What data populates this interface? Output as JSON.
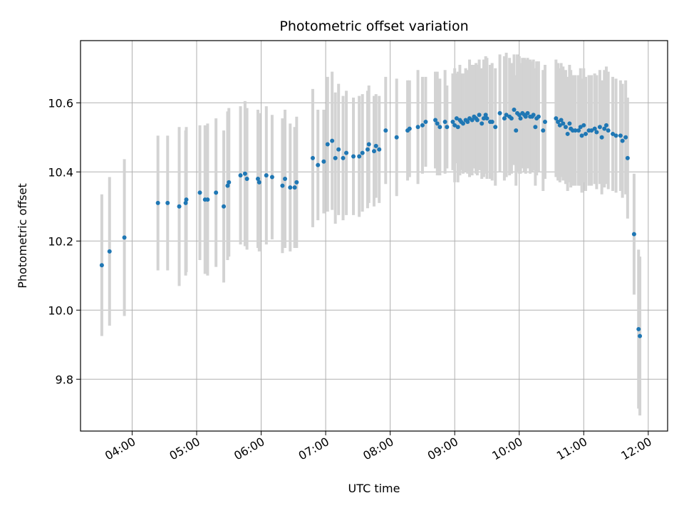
{
  "chart_data": {
    "type": "scatter",
    "title": "Photometric offset variation",
    "xlabel": "UTC time",
    "ylabel": "Photometric offset",
    "x_unit": "hours UTC",
    "xlim": [
      3.2,
      12.3
    ],
    "ylim": [
      9.65,
      10.78
    ],
    "x_ticks": [
      4,
      5,
      6,
      7,
      8,
      9,
      10,
      11,
      12
    ],
    "x_tick_labels": [
      "04:00",
      "05:00",
      "06:00",
      "07:00",
      "08:00",
      "09:00",
      "10:00",
      "11:00",
      "12:00"
    ],
    "y_ticks": [
      9.8,
      10.0,
      10.2,
      10.4,
      10.6
    ],
    "y_tick_labels": [
      "9.8",
      "10.0",
      "10.2",
      "10.4",
      "10.6"
    ],
    "grid": true,
    "point_color": "#1f77b4",
    "errorbar_color": "#d3d3d3",
    "points": [
      [
        3.53,
        10.13,
        0.205
      ],
      [
        3.65,
        10.17,
        0.215
      ],
      [
        3.88,
        10.21,
        0.227
      ],
      [
        4.4,
        10.31,
        0.195
      ],
      [
        4.55,
        10.31,
        0.195
      ],
      [
        4.73,
        10.3,
        0.23
      ],
      [
        4.83,
        10.31,
        0.21
      ],
      [
        4.84,
        10.32,
        0.21
      ],
      [
        5.05,
        10.34,
        0.195
      ],
      [
        5.13,
        10.32,
        0.215
      ],
      [
        5.17,
        10.32,
        0.22
      ],
      [
        5.3,
        10.34,
        0.215
      ],
      [
        5.42,
        10.3,
        0.22
      ],
      [
        5.48,
        10.36,
        0.215
      ],
      [
        5.5,
        10.37,
        0.215
      ],
      [
        5.68,
        10.39,
        0.2
      ],
      [
        5.75,
        10.395,
        0.21
      ],
      [
        5.78,
        10.38,
        0.205
      ],
      [
        5.95,
        10.38,
        0.2
      ],
      [
        5.97,
        10.37,
        0.2
      ],
      [
        6.08,
        10.39,
        0.2
      ],
      [
        6.17,
        10.385,
        0.18
      ],
      [
        6.33,
        10.36,
        0.195
      ],
      [
        6.37,
        10.38,
        0.2
      ],
      [
        6.45,
        10.355,
        0.185
      ],
      [
        6.52,
        10.355,
        0.175
      ],
      [
        6.55,
        10.37,
        0.19
      ],
      [
        6.8,
        10.44,
        0.2
      ],
      [
        6.88,
        10.42,
        0.16
      ],
      [
        6.97,
        10.43,
        0.15
      ],
      [
        7.03,
        10.48,
        0.195
      ],
      [
        7.1,
        10.49,
        0.2
      ],
      [
        7.15,
        10.44,
        0.19
      ],
      [
        7.2,
        10.465,
        0.19
      ],
      [
        7.27,
        10.44,
        0.18
      ],
      [
        7.32,
        10.455,
        0.18
      ],
      [
        7.43,
        10.445,
        0.17
      ],
      [
        7.52,
        10.445,
        0.175
      ],
      [
        7.57,
        10.455,
        0.17
      ],
      [
        7.65,
        10.465,
        0.17
      ],
      [
        7.67,
        10.48,
        0.17
      ],
      [
        7.75,
        10.46,
        0.16
      ],
      [
        7.78,
        10.475,
        0.15
      ],
      [
        7.83,
        10.465,
        0.155
      ],
      [
        7.93,
        10.52,
        0.155
      ],
      [
        8.1,
        10.5,
        0.17
      ],
      [
        8.27,
        10.52,
        0.145
      ],
      [
        8.3,
        10.525,
        0.14
      ],
      [
        8.43,
        10.53,
        0.165
      ],
      [
        8.5,
        10.535,
        0.14
      ],
      [
        8.55,
        10.545,
        0.13
      ],
      [
        8.7,
        10.55,
        0.14
      ],
      [
        8.73,
        10.54,
        0.15
      ],
      [
        8.77,
        10.53,
        0.14
      ],
      [
        8.85,
        10.545,
        0.15
      ],
      [
        8.88,
        10.53,
        0.12
      ],
      [
        8.97,
        10.545,
        0.14
      ],
      [
        9.0,
        10.535,
        0.165
      ],
      [
        9.03,
        10.555,
        0.13
      ],
      [
        9.05,
        10.53,
        0.16
      ],
      [
        9.08,
        10.55,
        0.16
      ],
      [
        9.1,
        10.545,
        0.14
      ],
      [
        9.13,
        10.54,
        0.145
      ],
      [
        9.17,
        10.55,
        0.15
      ],
      [
        9.2,
        10.545,
        0.15
      ],
      [
        9.23,
        10.555,
        0.17
      ],
      [
        9.27,
        10.55,
        0.16
      ],
      [
        9.3,
        10.56,
        0.15
      ],
      [
        9.33,
        10.555,
        0.16
      ],
      [
        9.35,
        10.55,
        0.16
      ],
      [
        9.38,
        10.565,
        0.16
      ],
      [
        9.42,
        10.54,
        0.16
      ],
      [
        9.45,
        10.555,
        0.17
      ],
      [
        9.48,
        10.565,
        0.17
      ],
      [
        9.5,
        10.555,
        0.175
      ],
      [
        9.55,
        10.545,
        0.165
      ],
      [
        9.58,
        10.545,
        0.17
      ],
      [
        9.63,
        10.53,
        0.17
      ],
      [
        9.7,
        10.57,
        0.17
      ],
      [
        9.77,
        10.555,
        0.18
      ],
      [
        9.8,
        10.565,
        0.18
      ],
      [
        9.85,
        10.56,
        0.17
      ],
      [
        9.88,
        10.555,
        0.16
      ],
      [
        9.92,
        10.58,
        0.16
      ],
      [
        9.95,
        10.52,
        0.16
      ],
      [
        9.97,
        10.57,
        0.17
      ],
      [
        10.0,
        10.565,
        0.17
      ],
      [
        10.02,
        10.555,
        0.16
      ],
      [
        10.05,
        10.57,
        0.16
      ],
      [
        10.08,
        10.565,
        0.165
      ],
      [
        10.1,
        10.56,
        0.165
      ],
      [
        10.13,
        10.57,
        0.16
      ],
      [
        10.17,
        10.56,
        0.165
      ],
      [
        10.2,
        10.56,
        0.16
      ],
      [
        10.22,
        10.565,
        0.16
      ],
      [
        10.25,
        10.53,
        0.17
      ],
      [
        10.27,
        10.555,
        0.165
      ],
      [
        10.3,
        10.56,
        0.16
      ],
      [
        10.37,
        10.52,
        0.175
      ],
      [
        10.4,
        10.545,
        0.165
      ],
      [
        10.57,
        10.555,
        0.17
      ],
      [
        10.6,
        10.545,
        0.17
      ],
      [
        10.63,
        10.535,
        0.165
      ],
      [
        10.65,
        10.55,
        0.165
      ],
      [
        10.68,
        10.54,
        0.165
      ],
      [
        10.72,
        10.53,
        0.165
      ],
      [
        10.75,
        10.51,
        0.165
      ],
      [
        10.78,
        10.54,
        0.17
      ],
      [
        10.8,
        10.525,
        0.17
      ],
      [
        10.83,
        10.52,
        0.16
      ],
      [
        10.87,
        10.52,
        0.16
      ],
      [
        10.92,
        10.52,
        0.16
      ],
      [
        10.95,
        10.53,
        0.17
      ],
      [
        10.97,
        10.505,
        0.165
      ],
      [
        11.0,
        10.535,
        0.165
      ],
      [
        11.03,
        10.51,
        0.165
      ],
      [
        11.08,
        10.52,
        0.16
      ],
      [
        11.12,
        10.52,
        0.16
      ],
      [
        11.17,
        10.525,
        0.16
      ],
      [
        11.2,
        10.515,
        0.165
      ],
      [
        11.25,
        10.53,
        0.165
      ],
      [
        11.28,
        10.5,
        0.165
      ],
      [
        11.32,
        10.525,
        0.17
      ],
      [
        11.35,
        10.535,
        0.17
      ],
      [
        11.38,
        10.52,
        0.17
      ],
      [
        11.45,
        10.51,
        0.165
      ],
      [
        11.5,
        10.505,
        0.165
      ],
      [
        11.57,
        10.505,
        0.16
      ],
      [
        11.6,
        10.49,
        0.165
      ],
      [
        11.65,
        10.5,
        0.165
      ],
      [
        11.68,
        10.44,
        0.175
      ],
      [
        11.78,
        10.22,
        0.175
      ],
      [
        11.85,
        9.945,
        0.23
      ],
      [
        11.87,
        9.925,
        0.23
      ]
    ]
  }
}
